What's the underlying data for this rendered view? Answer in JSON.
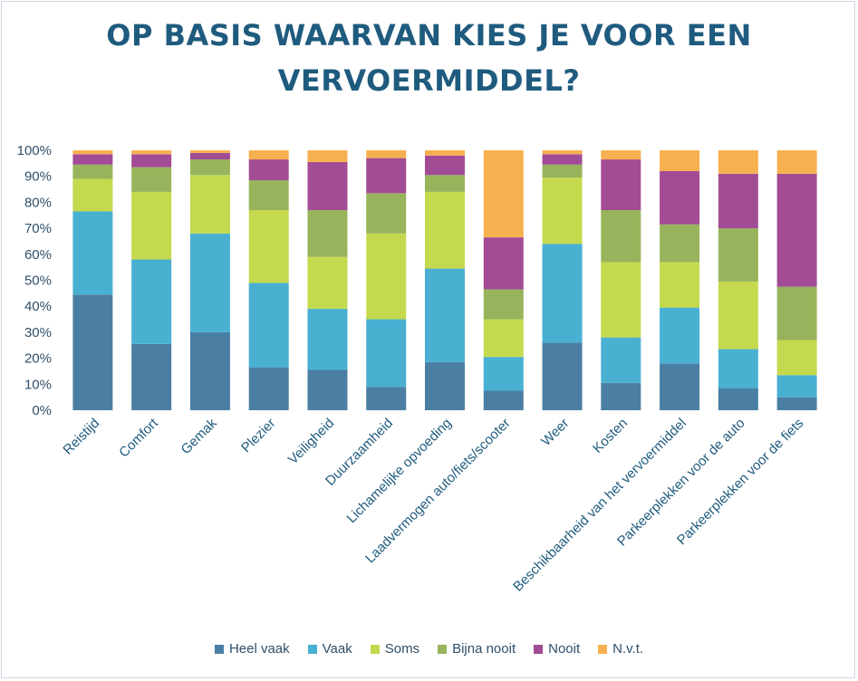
{
  "title_lines": [
    "OP BASIS WAARVAN KIES JE VOOR EEN",
    "VERVOERMIDDEL?"
  ],
  "chart_data": {
    "type": "bar",
    "stacked": true,
    "percent": true,
    "title": "OP BASIS WAARVAN KIES JE VOOR EEN VERVOERMIDDEL?",
    "ylim": [
      0,
      100
    ],
    "yticks": [
      "0%",
      "10%",
      "20%",
      "30%",
      "40%",
      "50%",
      "60%",
      "70%",
      "80%",
      "90%",
      "100%"
    ],
    "categories": [
      "Reistijd",
      "Comfort",
      "Gemak",
      "Plezier",
      "Veiligheid",
      "Duurzaamheid",
      "Lichamelijke opvoeding",
      "Laadvermogen auto/fiets/scooter",
      "Weer",
      "Kosten",
      "Beschikbaarheid van het vervoermiddel",
      "Parkeerplekken voor de auto",
      "Parkeerplekken voor de fiets"
    ],
    "series": [
      {
        "name": "Heel vaak",
        "color": "#4a7fa3",
        "values": [
          44.5,
          25.5,
          30,
          16.5,
          15.5,
          9,
          18.5,
          7.5,
          26,
          10.5,
          18,
          8.5,
          5
        ]
      },
      {
        "name": "Vaak",
        "color": "#49b0d2",
        "values": [
          32,
          32.5,
          38,
          32.5,
          23.5,
          26,
          36,
          13,
          38,
          17.5,
          21.5,
          15,
          8.5
        ]
      },
      {
        "name": "Soms",
        "color": "#c4d94d",
        "values": [
          12.5,
          26,
          22.5,
          28,
          20,
          33,
          29.5,
          14.5,
          25.5,
          29,
          17.5,
          26,
          13.5
        ]
      },
      {
        "name": "Bijna nooit",
        "color": "#97b45c",
        "values": [
          5.5,
          9.5,
          6,
          11.5,
          18,
          15.5,
          6.5,
          11.5,
          5,
          20,
          14.5,
          20.5,
          20.5
        ]
      },
      {
        "name": "Nooit",
        "color": "#a24c96",
        "values": [
          4,
          5,
          2.5,
          8,
          18.5,
          13.5,
          7.5,
          20,
          4,
          19.5,
          20.5,
          21,
          43.5
        ]
      },
      {
        "name": "N.v.t.",
        "color": "#f6b04f",
        "values": [
          1.5,
          1.5,
          1,
          3.5,
          4.5,
          3,
          2,
          33.5,
          1.5,
          3.5,
          8,
          9,
          9
        ]
      }
    ],
    "grid": false,
    "legend_position": "bottom"
  }
}
